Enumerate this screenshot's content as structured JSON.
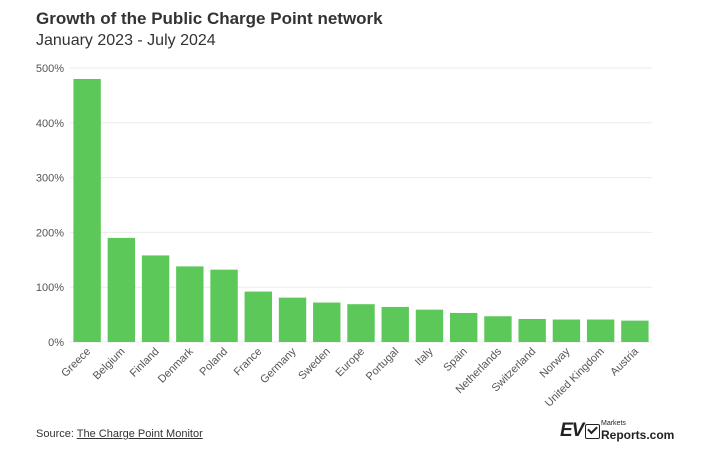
{
  "header": {
    "title": "Growth of the Public Charge Point network",
    "subtitle": "January 2023 - July 2024"
  },
  "footer": {
    "source_prefix": "Source:",
    "source_link": "The Charge Point Monitor"
  },
  "logo": {
    "ev": "EV",
    "markets": "Markets",
    "reports": "Reports.com"
  },
  "colors": {
    "bar": "#5dc85a",
    "grid": "#ebebeb",
    "axis_text": "#555555"
  },
  "chart_data": {
    "type": "bar",
    "title": "Growth of the Public Charge Point network",
    "subtitle": "January 2023 - July 2024",
    "xlabel": "",
    "ylabel": "",
    "ylim": [
      0,
      500
    ],
    "yticks": [
      0,
      100,
      200,
      300,
      400,
      500
    ],
    "ytick_labels": [
      "0%",
      "100%",
      "200%",
      "300%",
      "400%",
      "500%"
    ],
    "grid": true,
    "categories": [
      "Greece",
      "Belgium",
      "Finland",
      "Denmark",
      "Poland",
      "France",
      "Germany",
      "Sweden",
      "Europe",
      "Portugal",
      "Italy",
      "Spain",
      "Netherlands",
      "Switzerland",
      "Norway",
      "United Kingdom",
      "Austria"
    ],
    "values": [
      480,
      190,
      158,
      138,
      132,
      92,
      81,
      72,
      69,
      64,
      59,
      53,
      47,
      42,
      41,
      41,
      39
    ]
  }
}
